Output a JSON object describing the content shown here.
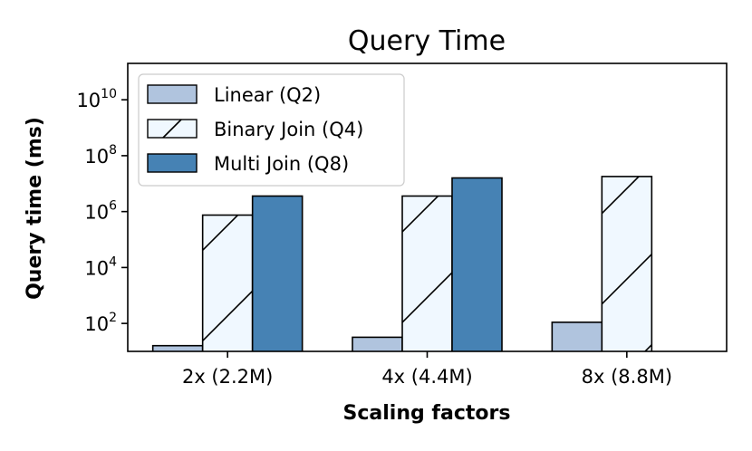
{
  "chart_data": {
    "type": "bar",
    "title": "Query Time",
    "xlabel": "Scaling factors",
    "ylabel": "Query time (ms)",
    "yscale": "log",
    "ylim": [
      10,
      200000000000
    ],
    "categories": [
      "2x (2.2M)",
      "4x (4.4M)",
      "8x (8.8M)"
    ],
    "yticks": [
      {
        "value": 100,
        "base": "10",
        "exp": "2"
      },
      {
        "value": 10000,
        "base": "10",
        "exp": "4"
      },
      {
        "value": 1000000,
        "base": "10",
        "exp": "6"
      },
      {
        "value": 100000000,
        "base": "10",
        "exp": "8"
      },
      {
        "value": 10000000000,
        "base": "10",
        "exp": "10"
      }
    ],
    "legend_position": "top-left",
    "grid": false,
    "series": [
      {
        "name": "Linear (Q2)",
        "values": [
          16,
          32,
          110
        ],
        "color": "#b0c4de",
        "hatch": "none"
      },
      {
        "name": "Binary Join (Q4)",
        "values": [
          750000,
          3600000,
          18000000
        ],
        "color": "#f0f8ff",
        "hatch": "diagonal"
      },
      {
        "name": "Multi Join (Q8)",
        "values": [
          3600000,
          16000000,
          null
        ],
        "color": "#4682b4",
        "hatch": "none"
      }
    ]
  }
}
